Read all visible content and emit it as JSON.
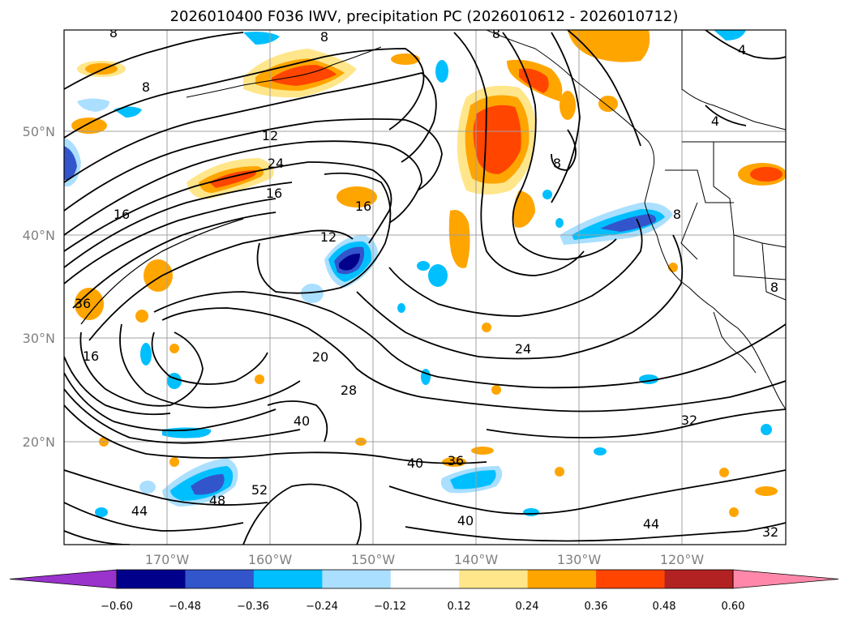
{
  "title": "2026010400 F036 IWV, precipitation PC (2026010612 - 2026010712)",
  "lat_labels": [
    {
      "label": "50°N",
      "lat": 50
    },
    {
      "label": "40°N",
      "lat": 40
    },
    {
      "label": "30°N",
      "lat": 30
    },
    {
      "label": "20°N",
      "lat": 20
    }
  ],
  "lon_labels": [
    {
      "label": "170°W",
      "lon": -170
    },
    {
      "label": "160°W",
      "lon": -160
    },
    {
      "label": "150°W",
      "lon": -150
    },
    {
      "label": "140°W",
      "lon": -140
    },
    {
      "label": "130°W",
      "lon": -130
    },
    {
      "label": "120°W",
      "lon": -120
    }
  ],
  "colorbar": {
    "ticks": [
      "−0.60",
      "−0.48",
      "−0.36",
      "−0.24",
      "−0.12",
      "0.12",
      "0.24",
      "0.36",
      "0.48",
      "0.60"
    ],
    "colors": [
      "#9933cc",
      "#00008b",
      "#3355cc",
      "#00bfff",
      "#aadfff",
      "#ffffff",
      "#ffe68a",
      "#ffa500",
      "#ff4500",
      "#b22222",
      "#ff88aa"
    ]
  },
  "contour_labels": [
    {
      "text": "8"
    },
    {
      "text": "8"
    },
    {
      "text": "12"
    },
    {
      "text": "24"
    },
    {
      "text": "16"
    },
    {
      "text": "16"
    },
    {
      "text": "16"
    },
    {
      "text": "12"
    },
    {
      "text": "36"
    },
    {
      "text": "16"
    },
    {
      "text": "20"
    },
    {
      "text": "28"
    },
    {
      "text": "24"
    },
    {
      "text": "32"
    },
    {
      "text": "40"
    },
    {
      "text": "36"
    },
    {
      "text": "40"
    },
    {
      "text": "52"
    },
    {
      "text": "48"
    },
    {
      "text": "44"
    },
    {
      "text": "40"
    },
    {
      "text": "44"
    },
    {
      "text": "32"
    },
    {
      "text": "8"
    },
    {
      "text": "8"
    },
    {
      "text": "4"
    },
    {
      "text": "4"
    },
    {
      "text": "8"
    },
    {
      "text": "8"
    },
    {
      "text": "8"
    }
  ],
  "colors": {
    "blue_light": "#aadfff",
    "blue": "#00bfff",
    "blue_mid": "#3355cc",
    "navy": "#00008b",
    "yellow": "#ffe68a",
    "orange": "#ffa500",
    "red_orange": "#ff4500"
  }
}
